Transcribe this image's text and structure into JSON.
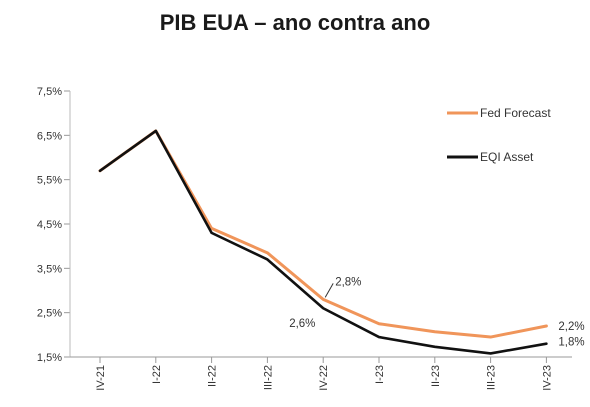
{
  "chart_data": {
    "type": "line",
    "title": "PIB EUA – ano contra ano",
    "categories": [
      "IV-21",
      "I-22",
      "II-22",
      "III-22",
      "IV-22",
      "I-23",
      "II-23",
      "III-23",
      "IV-23"
    ],
    "yticks": [
      "7,5%",
      "6,5%",
      "5,5%",
      "4,5%",
      "3,5%",
      "2,5%",
      "1,5%"
    ],
    "ylim": [
      1.5,
      7.5
    ],
    "grid": false,
    "legend_position": "top-right",
    "series": [
      {
        "name": "Fed Forecast",
        "color": "#F0955A",
        "values": [
          5.7,
          6.6,
          4.4,
          3.85,
          2.8,
          2.25,
          2.07,
          1.95,
          2.2
        ]
      },
      {
        "name": "EQI Asset",
        "color": "#111111",
        "values": [
          5.7,
          6.6,
          4.3,
          3.7,
          2.6,
          1.95,
          1.73,
          1.58,
          1.8
        ]
      }
    ],
    "annotations": [
      {
        "series": 0,
        "index": 4,
        "text": "2,8%"
      },
      {
        "series": 1,
        "index": 4,
        "text": "2,6%"
      },
      {
        "series": 0,
        "index": 8,
        "text": "2,2%"
      },
      {
        "series": 1,
        "index": 8,
        "text": "1,8%"
      }
    ]
  }
}
